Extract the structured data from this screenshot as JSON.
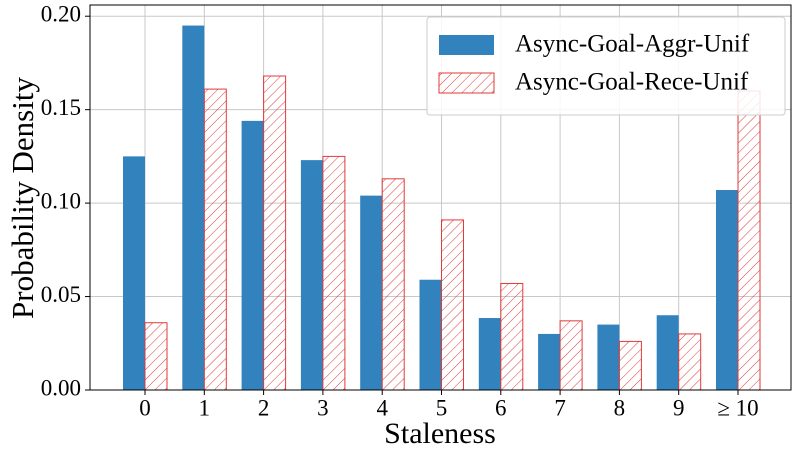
{
  "chart_data": {
    "type": "bar",
    "x_label": "Staleness",
    "y_label": "Probability Density",
    "categories": [
      "0",
      "1",
      "2",
      "3",
      "4",
      "5",
      "6",
      "7",
      "8",
      "9",
      "≥ 10"
    ],
    "series": [
      {
        "name": "Async-Goal-Aggr-Unif",
        "color": "#3282be",
        "values": [
          0.125,
          0.195,
          0.144,
          0.123,
          0.104,
          0.059,
          0.0385,
          0.03,
          0.035,
          0.04,
          0.107
        ]
      },
      {
        "name": "Async-Goal-Rece-Unif",
        "color": "#e03a3a",
        "hatch": "///",
        "values": [
          0.036,
          0.161,
          0.168,
          0.125,
          0.113,
          0.091,
          0.057,
          0.037,
          0.026,
          0.03,
          0.16
        ]
      }
    ],
    "ylim": [
      0,
      0.206
    ],
    "yticks": [
      {
        "value": 0,
        "label": "0.00"
      },
      {
        "value": 0.05,
        "label": "0.05"
      },
      {
        "value": 0.1,
        "label": "0.10"
      },
      {
        "value": 0.15,
        "label": "0.15"
      },
      {
        "value": 0.2,
        "label": "0.20"
      }
    ],
    "grid": true,
    "legend": "upper right"
  }
}
